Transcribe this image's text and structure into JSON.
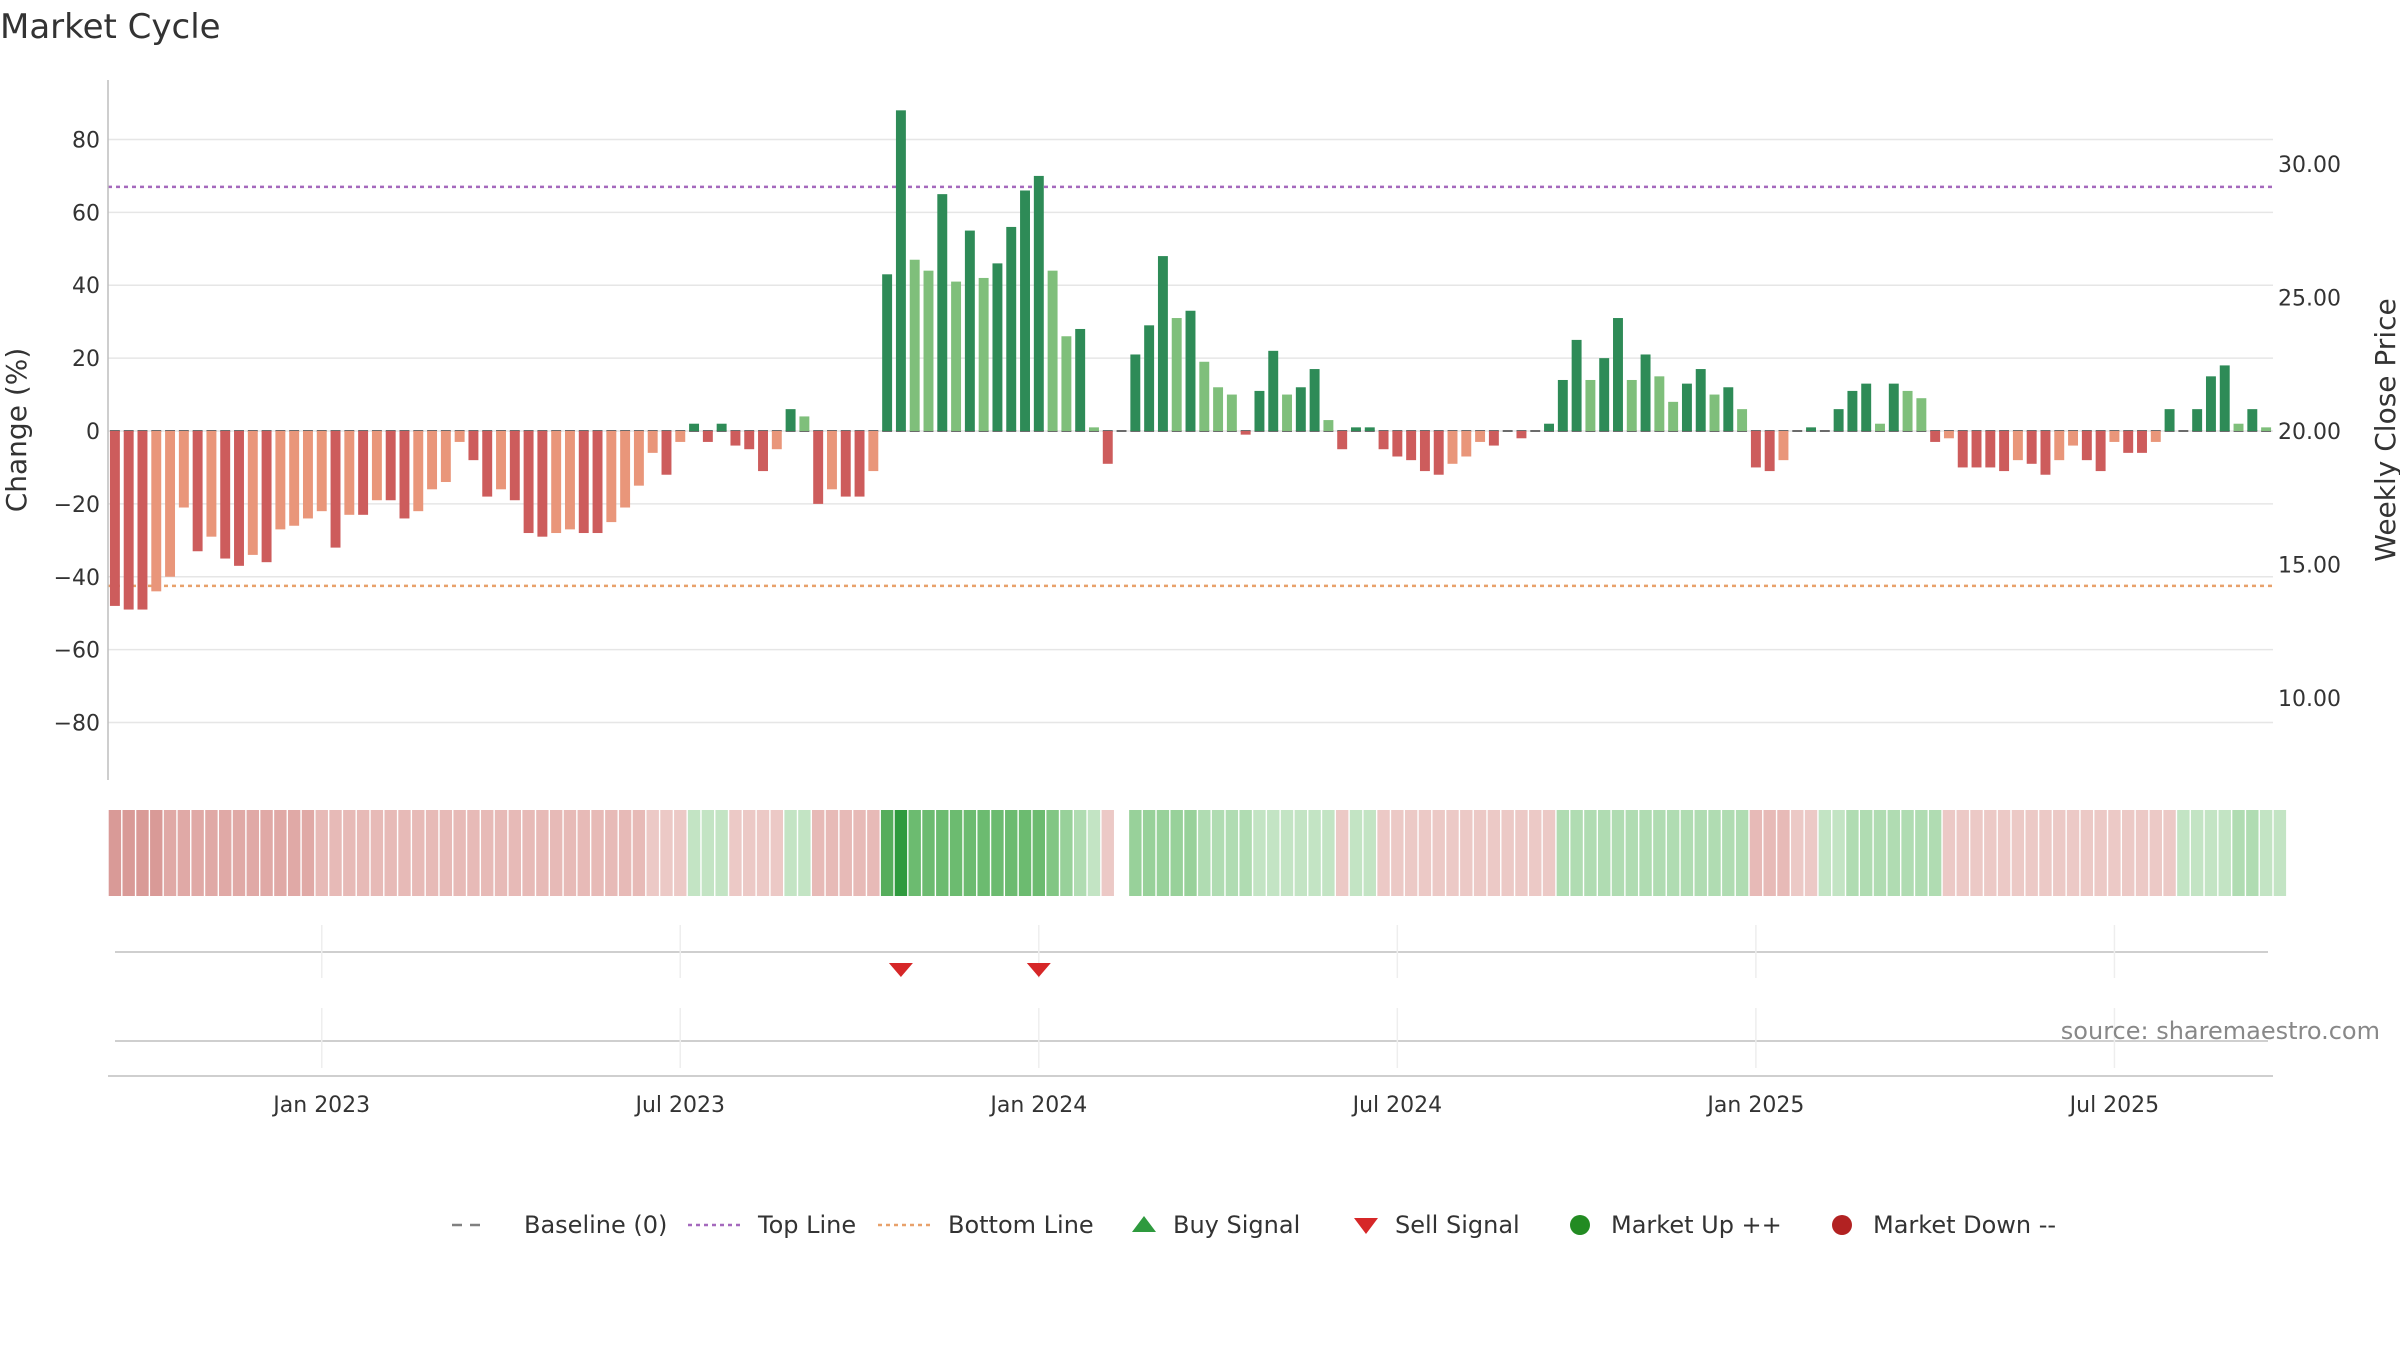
{
  "chart_data": {
    "type": "bar",
    "title": "Market Cycle",
    "ylabel": "Change (%)",
    "y2label": "Weekly Close Price",
    "ylim": [
      -97,
      96
    ],
    "y_ticks": [
      80,
      60,
      40,
      20,
      0,
      -20,
      -40,
      -60,
      -80
    ],
    "y2_ticks": [
      {
        "value": 30,
        "label": "30.00"
      },
      {
        "value": 25,
        "label": "25.00"
      },
      {
        "value": 20,
        "label": "20.00"
      },
      {
        "value": 15,
        "label": "15.00"
      },
      {
        "value": 10,
        "label": "10.00"
      }
    ],
    "x_ticks": [
      {
        "week": 15,
        "label": "Jan 2023"
      },
      {
        "week": 41,
        "label": "Jul 2023"
      },
      {
        "week": 67,
        "label": "Jan 2024"
      },
      {
        "week": 93,
        "label": "Jul 2024"
      },
      {
        "week": 119,
        "label": "Jan 2025"
      },
      {
        "week": 145,
        "label": "Jul 2025"
      }
    ],
    "top_line": 67,
    "bottom_line": -42.5,
    "baseline": 0,
    "values": [
      -48,
      -49,
      -49,
      -44,
      -40,
      -21,
      -33,
      -29,
      -35,
      -37,
      -34,
      -36,
      -27,
      -26,
      -24,
      -22,
      -32,
      -23,
      -23,
      -19,
      -19,
      -24,
      -22,
      -16,
      -14,
      -3,
      -8,
      -18,
      -16,
      -19,
      -28,
      -29,
      -28,
      -27,
      -28,
      -28,
      -25,
      -21,
      -15,
      -6,
      -12,
      -3,
      2,
      -3,
      2,
      -4,
      -5,
      -11,
      -5,
      6,
      4,
      -20,
      -16,
      -18,
      -18,
      -11,
      43,
      88,
      47,
      44,
      65,
      41,
      55,
      42,
      46,
      56,
      66,
      70,
      44,
      26,
      28,
      1,
      -9,
      0,
      21,
      29,
      48,
      31,
      33,
      19,
      12,
      10,
      -1,
      11,
      22,
      10,
      12,
      17,
      3,
      -5,
      1,
      1,
      -5,
      -7,
      -8,
      -11,
      -12,
      -9,
      -7,
      -3,
      -4,
      0,
      -2,
      0,
      2,
      14,
      25,
      14,
      20,
      31,
      14,
      21,
      15,
      8,
      13,
      17,
      10,
      12,
      6,
      -10,
      -11,
      -8,
      0,
      1,
      0,
      6,
      11,
      13,
      2,
      13,
      11,
      9,
      -3,
      -2,
      -10,
      -10,
      -10,
      -11,
      -8,
      -9,
      -12,
      -8,
      -4,
      -8,
      -11,
      -3,
      -6,
      -6,
      -3,
      6,
      0,
      6,
      15,
      18,
      2,
      6,
      1
    ],
    "cycle_strength": [
      -5,
      -5,
      -5,
      -5,
      -4,
      -4,
      -4,
      -4,
      -4,
      -4,
      -4,
      -4,
      -4,
      -4,
      -4,
      -3,
      -3,
      -3,
      -3,
      -3,
      -3,
      -3,
      -3,
      -3,
      -3,
      -3,
      -3,
      -3,
      -3,
      -3,
      -3,
      -3,
      -3,
      -3,
      -3,
      -3,
      -3,
      -3,
      -3,
      -2,
      -2,
      -2,
      2,
      2,
      2,
      -2,
      -2,
      -2,
      -2,
      2,
      2,
      -3,
      -3,
      -3,
      -3,
      -3,
      7,
      8,
      6,
      6,
      6,
      6,
      6,
      6,
      6,
      6,
      6,
      6,
      5,
      4,
      3,
      2,
      -2,
      null,
      4,
      4,
      4,
      4,
      4,
      3,
      3,
      3,
      3,
      2,
      2,
      2,
      2,
      2,
      2,
      -2,
      2,
      2,
      -2,
      -2,
      -2,
      -2,
      -2,
      -2,
      -2,
      -2,
      -2,
      -2,
      -2,
      -2,
      -2,
      3,
      3,
      3,
      3,
      3,
      3,
      3,
      3,
      3,
      3,
      3,
      3,
      3,
      3,
      -3,
      -3,
      -3,
      -2,
      -2,
      2,
      2,
      3,
      3,
      3,
      3,
      3,
      3,
      3,
      -2,
      -2,
      -2,
      -2,
      -2,
      -2,
      -2,
      -2,
      -2,
      -2,
      -2,
      -2,
      -2,
      -2,
      -2,
      -2,
      -2,
      2,
      2,
      2,
      2,
      3,
      3,
      2,
      2
    ]
  },
  "signals": {
    "sell_weeks": [
      57,
      67
    ],
    "buy_weeks": []
  },
  "source_text": "source: sharemaestro.com",
  "legend": [
    {
      "key": "baseline",
      "label": "Baseline (0)",
      "color": "#808080",
      "icon": "dash-line"
    },
    {
      "key": "top",
      "label": "Top Line",
      "color": "#a569bd",
      "icon": "dotted-line"
    },
    {
      "key": "bottom",
      "label": "Bottom Line",
      "color": "#e8a16b",
      "icon": "dotted-line"
    },
    {
      "key": "buy",
      "label": "Buy Signal",
      "color": "#2e9a3e",
      "icon": "triangle-up-icon"
    },
    {
      "key": "sell",
      "label": "Sell Signal",
      "color": "#d62728",
      "icon": "triangle-down-icon"
    },
    {
      "key": "up",
      "label": "Market Up ++",
      "color": "#228b22",
      "icon": "circle-icon"
    },
    {
      "key": "down",
      "label": "Market Down --",
      "color": "#b22222",
      "icon": "circle-icon"
    }
  ],
  "colors": {
    "up_strong": "#2e8b57",
    "up_light": "#7fbf7b",
    "down_strong": "#cd5c5c",
    "down_light": "#e9967a",
    "top_line": "#a569bd",
    "bottom_line": "#e8a16b",
    "grid": "#e6e6e6",
    "axis": "#bdbdbd"
  }
}
